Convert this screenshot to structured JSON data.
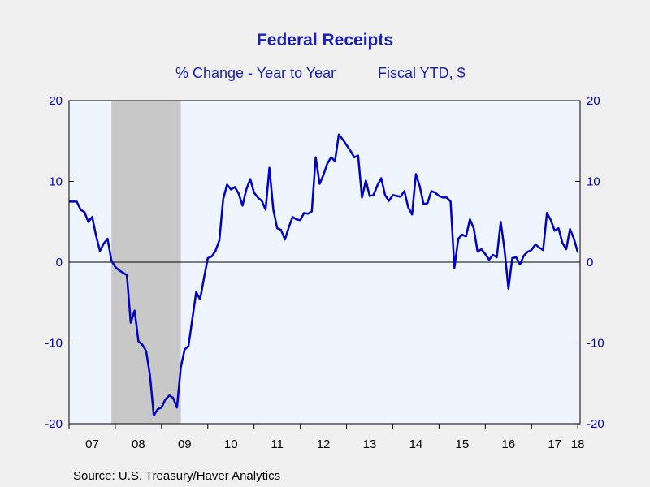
{
  "header": {
    "title": "Federal Receipts",
    "subtitle_left": "% Change - Year to Year",
    "subtitle_right": "Fiscal YTD, $"
  },
  "footer": {
    "source": "Source:  U.S. Treasury/Haver Analytics"
  },
  "colors": {
    "line": "#0000c0",
    "plot_background": "#eef5ff",
    "recession_shade": "#c8c8c8",
    "axis_text_y": "#0000c0",
    "axis_text_x": "#000000"
  },
  "chart_data": {
    "type": "line",
    "title": "Federal Receipts",
    "subtitle": "% Change - Year to Year     Fiscal YTD, $",
    "x_range": [
      2007.0,
      2018.05
    ],
    "ylim": [
      -20,
      20
    ],
    "y_ticks": [
      -20,
      -10,
      0,
      10,
      20
    ],
    "y_tick_labels": [
      "-20",
      "-10",
      "0",
      "10",
      "20"
    ],
    "right_axis_mirrors_left": true,
    "x_ticks": [
      2007,
      2008,
      2009,
      2010,
      2011,
      2012,
      2013,
      2014,
      2015,
      2016,
      2017,
      2018
    ],
    "x_tick_labels": [
      "07",
      "08",
      "09",
      "10",
      "11",
      "12",
      "13",
      "14",
      "15",
      "16",
      "17",
      "18"
    ],
    "zero_line": true,
    "grid": false,
    "recession_band": [
      2007.917,
      2009.417
    ],
    "series": [
      {
        "x": [
          2007.0,
          2007.083,
          2007.167,
          2007.25,
          2007.333,
          2007.417,
          2007.5,
          2007.583,
          2007.667,
          2007.75,
          2007.833,
          2007.917,
          2008.0,
          2008.083,
          2008.167,
          2008.25,
          2008.333,
          2008.417,
          2008.5,
          2008.583,
          2008.667,
          2008.75,
          2008.833,
          2008.917,
          2009.0,
          2009.083,
          2009.167,
          2009.25,
          2009.333,
          2009.417,
          2009.5,
          2009.583,
          2009.667,
          2009.75,
          2009.833,
          2009.917,
          2010.0,
          2010.083,
          2010.167,
          2010.25,
          2010.333,
          2010.417,
          2010.5,
          2010.583,
          2010.667,
          2010.75,
          2010.833,
          2010.917,
          2011.0,
          2011.083,
          2011.167,
          2011.25,
          2011.333,
          2011.417,
          2011.5,
          2011.583,
          2011.667,
          2011.75,
          2011.833,
          2011.917,
          2012.0,
          2012.083,
          2012.167,
          2012.25,
          2012.333,
          2012.417,
          2012.5,
          2012.583,
          2012.667,
          2012.75,
          2012.833,
          2012.917,
          2013.0,
          2013.083,
          2013.167,
          2013.25,
          2013.333,
          2013.417,
          2013.5,
          2013.583,
          2013.667,
          2013.75,
          2013.833,
          2013.917,
          2014.0,
          2014.083,
          2014.167,
          2014.25,
          2014.333,
          2014.417,
          2014.5,
          2014.583,
          2014.667,
          2014.75,
          2014.833,
          2014.917,
          2015.0,
          2015.083,
          2015.167,
          2015.25,
          2015.333,
          2015.417,
          2015.5,
          2015.583,
          2015.667,
          2015.75,
          2015.833,
          2015.917,
          2016.0,
          2016.083,
          2016.167,
          2016.25,
          2016.333,
          2016.417,
          2016.5,
          2016.583,
          2016.667,
          2016.75,
          2016.833,
          2016.917,
          2017.0,
          2017.083,
          2017.167,
          2017.25,
          2017.333,
          2017.417,
          2017.5,
          2017.583,
          2017.667,
          2017.75,
          2017.833,
          2017.917,
          2018.0
        ],
        "values": [
          7.5,
          7.5,
          7.5,
          6.5,
          6.2,
          5.0,
          5.6,
          3.3,
          1.4,
          2.3,
          2.9,
          0.2,
          -0.6,
          -1.0,
          -1.3,
          -1.6,
          -7.5,
          -6.0,
          -9.8,
          -10.2,
          -11.0,
          -14.0,
          -19.0,
          -18.2,
          -18.0,
          -17.0,
          -16.5,
          -16.8,
          -18.0,
          -13.0,
          -10.8,
          -10.4,
          -7.0,
          -3.7,
          -4.6,
          -2.0,
          0.5,
          0.7,
          1.4,
          2.7,
          7.8,
          9.6,
          9.0,
          9.3,
          8.5,
          7.0,
          9.0,
          10.3,
          8.6,
          8.0,
          7.6,
          6.5,
          11.7,
          6.5,
          4.2,
          4.0,
          2.8,
          4.3,
          5.6,
          5.3,
          5.2,
          6.1,
          6.0,
          6.3,
          13.0,
          9.7,
          10.8,
          12.2,
          13.0,
          12.5,
          15.8,
          15.2,
          14.5,
          13.8,
          13.0,
          13.2,
          8.0,
          10.1,
          8.2,
          8.3,
          9.5,
          10.4,
          8.3,
          7.6,
          8.3,
          8.2,
          8.1,
          8.8,
          6.8,
          5.9,
          10.9,
          9.4,
          7.2,
          7.3,
          8.8,
          8.6,
          8.2,
          8.0,
          8.0,
          7.5,
          -0.7,
          2.9,
          3.4,
          3.2,
          5.3,
          4.2,
          1.3,
          1.6,
          1.0,
          0.3,
          0.9,
          0.6,
          5.0,
          1.5,
          -3.3,
          0.5,
          0.6,
          -0.3,
          0.8,
          1.3,
          1.5,
          2.2,
          1.8,
          1.5,
          6.1,
          5.2,
          3.9,
          4.2,
          2.4,
          1.6,
          4.1,
          2.9,
          1.2
        ]
      }
    ]
  }
}
